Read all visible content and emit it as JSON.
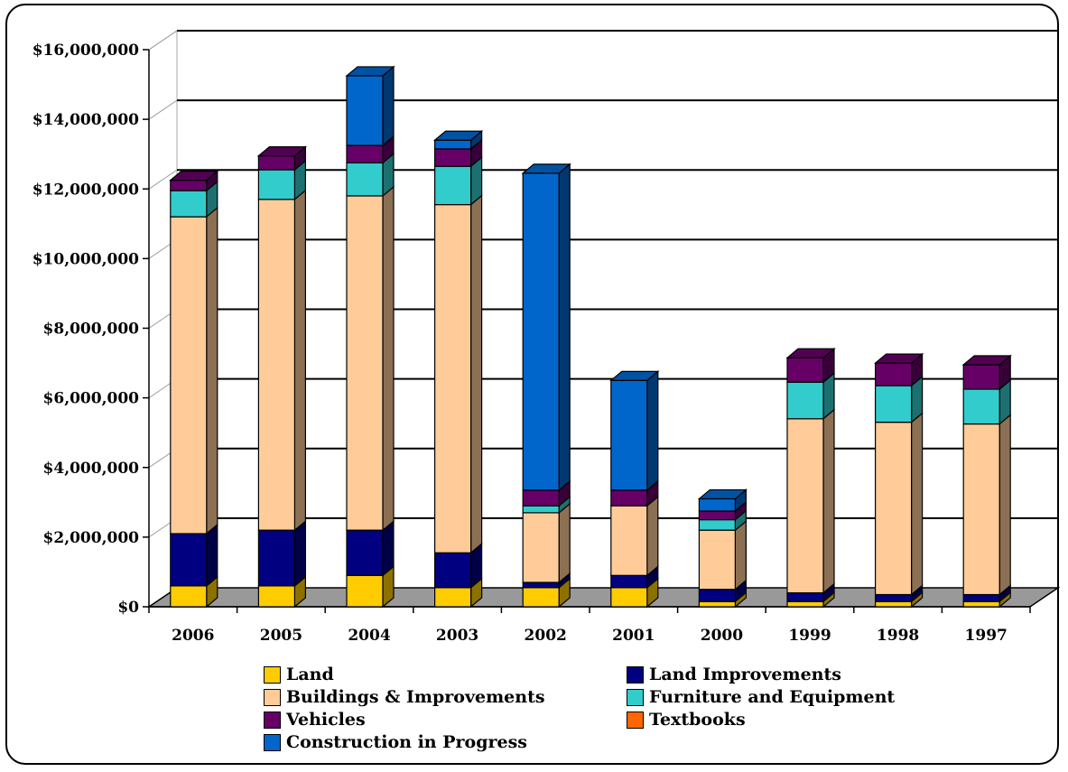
{
  "chart_data": {
    "type": "bar",
    "stacked": true,
    "three_d": true,
    "title": "",
    "xlabel": "",
    "ylabel": "",
    "ylim": [
      0,
      16000000
    ],
    "yticks": [
      0,
      2000000,
      4000000,
      6000000,
      8000000,
      10000000,
      12000000,
      14000000,
      16000000
    ],
    "ytick_labels": [
      "$0",
      "$2,000,000",
      "$4,000,000",
      "$6,000,000",
      "$8,000,000",
      "$10,000,000",
      "$12,000,000",
      "$14,000,000",
      "$16,000,000"
    ],
    "grid": true,
    "legend_position": "bottom",
    "categories": [
      "2006",
      "2005",
      "2004",
      "2003",
      "2002",
      "2001",
      "2000",
      "1999",
      "1998",
      "1997"
    ],
    "series": [
      {
        "name": "Land",
        "color": "#FFCC00",
        "values": [
          600000,
          600000,
          900000,
          550000,
          550000,
          550000,
          150000,
          150000,
          150000,
          150000
        ]
      },
      {
        "name": "Land Improvements",
        "color": "#000080",
        "values": [
          1500000,
          1600000,
          1300000,
          1000000,
          150000,
          350000,
          350000,
          250000,
          200000,
          200000
        ]
      },
      {
        "name": "Buildings & Improvements",
        "color": "#FFCC99",
        "values": [
          9100000,
          9500000,
          9600000,
          10000000,
          2000000,
          2000000,
          1700000,
          5000000,
          4950000,
          4900000
        ]
      },
      {
        "name": "Furniture and Equipment",
        "color": "#33CCCC",
        "values": [
          750000,
          850000,
          950000,
          1100000,
          200000,
          0,
          300000,
          1050000,
          1050000,
          1000000
        ]
      },
      {
        "name": "Textbooks",
        "color": "#FF6600",
        "values": [
          0,
          0,
          0,
          0,
          0,
          0,
          0,
          0,
          0,
          0
        ]
      },
      {
        "name": "Vehicles",
        "color": "#660066",
        "values": [
          300000,
          400000,
          500000,
          500000,
          450000,
          450000,
          250000,
          700000,
          650000,
          700000
        ]
      },
      {
        "name": "Construction in Progress",
        "color": "#0066CC",
        "values": [
          0,
          0,
          2000000,
          250000,
          9100000,
          3150000,
          350000,
          0,
          0,
          0
        ]
      }
    ]
  },
  "legend_order": [
    "Land",
    "Land Improvements",
    "Buildings & Improvements",
    "Furniture and Equipment",
    "Vehicles",
    "Textbooks",
    "Construction in Progress"
  ]
}
